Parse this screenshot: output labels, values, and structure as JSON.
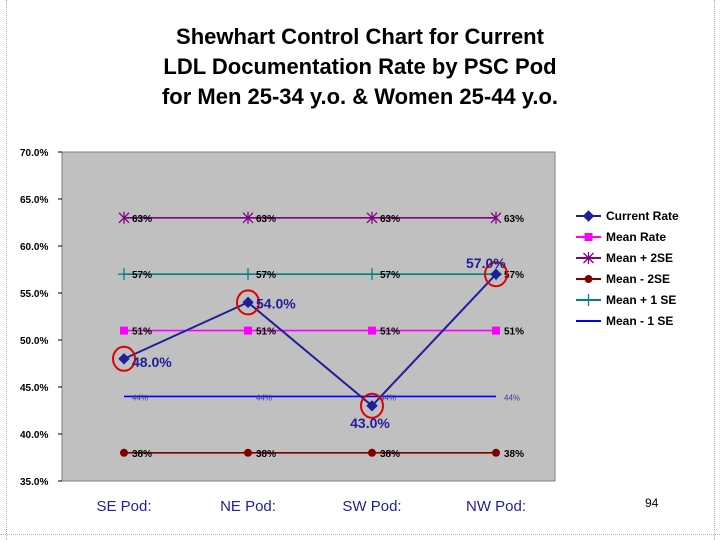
{
  "title_lines": [
    "Shewhart Control Chart for Current",
    "LDL Documentation Rate by PSC Pod",
    "for Men 25-34 y.o. & Women 25-44 y.o."
  ],
  "page_number": "94",
  "chart_data": {
    "type": "line",
    "categories": [
      "SE Pod:",
      "NE Pod:",
      "SW Pod:",
      "NW Pod:"
    ],
    "ylim": [
      0.35,
      0.7
    ],
    "y_ticks": [
      0.7,
      0.65,
      0.6,
      0.55,
      0.5,
      0.45,
      0.4,
      0.35
    ],
    "y_tick_labels": [
      "70.0%",
      "65.0%",
      "60.0%",
      "55.0%",
      "50.0%",
      "45.0%",
      "40.0%",
      "35.0%"
    ],
    "legend_position": "right",
    "grid": false,
    "series": [
      {
        "name": "Current Rate",
        "values": [
          0.48,
          0.54,
          0.43,
          0.57
        ],
        "labels": [
          "48.0%",
          "54.0%",
          "43.0%",
          "57.0%"
        ],
        "color": "#1f1f9a",
        "marker": "diamond"
      },
      {
        "name": "Mean Rate",
        "values": [
          0.51,
          0.51,
          0.51,
          0.51
        ],
        "labels": [
          "51%",
          "51%",
          "51%",
          "51%"
        ],
        "color": "#ff00ff",
        "marker": "square"
      },
      {
        "name": "Mean + 2SE",
        "values": [
          0.63,
          0.63,
          0.63,
          0.63
        ],
        "labels": [
          "63%",
          "63%",
          "63%",
          "63%"
        ],
        "color": "#800080",
        "marker": "star"
      },
      {
        "name": "Mean - 2SE",
        "values": [
          0.38,
          0.38,
          0.38,
          0.38
        ],
        "labels": [
          "38%",
          "38%",
          "38%",
          "38%"
        ],
        "color": "#800000",
        "marker": "circle"
      },
      {
        "name": "Mean + 1 SE",
        "values": [
          0.57,
          0.57,
          0.57,
          0.57
        ],
        "labels": [
          "57%",
          "57%",
          "57%",
          "57%"
        ],
        "color": "#008080",
        "marker": "plus"
      },
      {
        "name": "Mean - 1 SE",
        "values": [
          0.44,
          0.44,
          0.44,
          0.44
        ],
        "labels": [
          "44%",
          "44%",
          "44%",
          "44%"
        ],
        "color": "#0000ff",
        "marker": "none"
      }
    ],
    "highlighted_points": [
      "SE Pod:",
      "NE Pod:",
      "SW Pod:",
      "NW Pod:"
    ],
    "highlight_color": "#e00000"
  }
}
